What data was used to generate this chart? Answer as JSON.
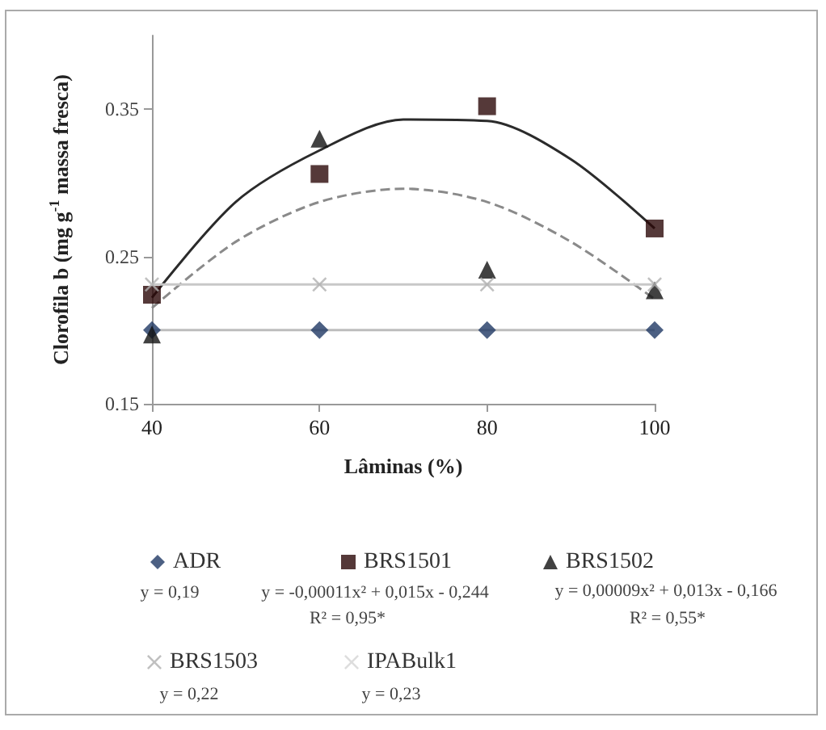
{
  "chart_data": {
    "type": "scatter",
    "xlabel": "Lâminas (%)",
    "ylabel": "Clorofila b (mg g$^{-1}$ massa fresca)",
    "x": [
      40,
      60,
      80,
      100
    ],
    "xlim": [
      40,
      100
    ],
    "xticks": [
      40,
      60,
      80,
      100
    ],
    "ylim": [
      0.15,
      0.4
    ],
    "yticks": [
      0.15,
      0.25,
      0.35
    ],
    "legend": "bottom",
    "series": [
      {
        "name": "ADR",
        "color": "#1f3864",
        "marker": "diamond",
        "values": [
          0.2,
          0.2,
          0.2,
          0.2
        ]
      },
      {
        "name": "BRS1501",
        "color": "#2a0808",
        "marker": "square",
        "values": [
          0.224,
          0.306,
          0.352,
          0.269
        ]
      },
      {
        "name": "BRS1502",
        "color": "#111111",
        "marker": "triangle",
        "values": [
          0.197,
          0.33,
          0.241,
          0.227
        ]
      },
      {
        "name": "BRS1503",
        "color": "#b0b0b0",
        "marker": "cross",
        "values": [
          0.231,
          0.231,
          0.231,
          0.231
        ]
      },
      {
        "name": "IPABulk1",
        "color": "#d4d4d4",
        "marker": "cross",
        "values": [
          null,
          null,
          null,
          null
        ]
      },
      {
        "type": "line",
        "color": "#bdbdbd",
        "line_style": "solid",
        "marker": "none",
        "x": [
          40,
          100
        ],
        "values": [
          0.2,
          0.2
        ]
      },
      {
        "type": "line",
        "color": "#2b2b2b",
        "line_style": "solid",
        "marker": "none",
        "x": [
          40,
          50,
          60,
          70,
          80,
          90,
          100
        ],
        "values": [
          0.222,
          0.287,
          0.322,
          0.343,
          0.342,
          0.316,
          0.269
        ]
      },
      {
        "type": "line",
        "color": "#8a8a8a",
        "line_style": "dashed",
        "marker": "none",
        "x": [
          40,
          50,
          60,
          70,
          80,
          90,
          100
        ],
        "values": [
          0.215,
          0.26,
          0.287,
          0.296,
          0.287,
          0.26,
          0.221
        ]
      },
      {
        "type": "line",
        "color": "#c8c8c8",
        "line_style": "solid",
        "marker": "none",
        "x": [
          40,
          100
        ],
        "values": [
          0.231,
          0.231
        ]
      }
    ],
    "annotations": [
      "y = 0,19",
      "y = -0,00011x² + 0,015x - 0,244",
      "R² = 0,95*",
      "y = 0,00009x² + 0,013x - 0,166",
      "R² = 0,55*",
      "y = 0,22",
      "y = 0,23"
    ]
  }
}
